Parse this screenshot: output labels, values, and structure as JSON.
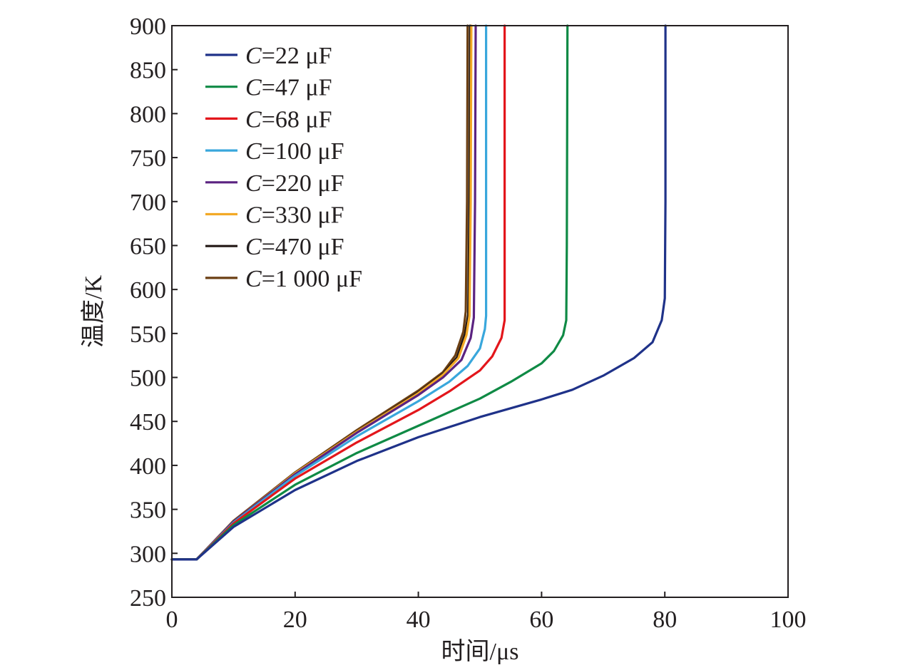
{
  "chart_data": {
    "type": "line",
    "title": "",
    "xlabel": "时间/μs",
    "ylabel": "温度/K",
    "xlim": [
      0,
      100
    ],
    "ylim": [
      250,
      900
    ],
    "xticks": [
      0,
      20,
      40,
      60,
      80,
      100
    ],
    "yticks": [
      250,
      300,
      350,
      400,
      450,
      500,
      550,
      600,
      650,
      700,
      750,
      800,
      850,
      900
    ],
    "grid": false,
    "legend_position": "top-left",
    "series": [
      {
        "name": "C=22 μF",
        "legend_var": "C",
        "legend_rest": "=22 μF",
        "color": "#1f3289",
        "x": [
          0,
          4,
          10,
          20,
          30,
          40,
          50,
          60,
          65,
          70,
          75,
          78,
          79.5,
          80,
          80.1,
          80.1
        ],
        "y": [
          293,
          293,
          330,
          372,
          405,
          432,
          455,
          475,
          486,
          502,
          522,
          540,
          565,
          590,
          700,
          900
        ]
      },
      {
        "name": "C=47 μF",
        "legend_var": "C",
        "legend_rest": "=47 μF",
        "color": "#0f8a45",
        "x": [
          0,
          4,
          10,
          20,
          30,
          40,
          50,
          55,
          60,
          62,
          63.5,
          64,
          64.1,
          64.2
        ],
        "y": [
          293,
          293,
          332,
          378,
          414,
          445,
          476,
          495,
          516,
          530,
          548,
          565,
          650,
          900
        ]
      },
      {
        "name": "C=68 μF",
        "legend_var": "C",
        "legend_rest": "=68 μF",
        "color": "#e3161b",
        "x": [
          0,
          4,
          10,
          20,
          30,
          40,
          45,
          50,
          52,
          53.5,
          54,
          54,
          54
        ],
        "y": [
          293,
          293,
          334,
          385,
          426,
          463,
          484,
          508,
          524,
          545,
          565,
          700,
          900
        ]
      },
      {
        "name": "C=100 μF",
        "legend_var": "C",
        "legend_rest": "=100 μF",
        "color": "#39a7dc",
        "x": [
          0,
          4,
          10,
          20,
          30,
          40,
          45,
          48,
          50,
          50.8,
          51,
          51,
          51
        ],
        "y": [
          293,
          293,
          335,
          388,
          433,
          473,
          495,
          513,
          533,
          555,
          570,
          700,
          900
        ]
      },
      {
        "name": "C=220 μF",
        "legend_var": "C",
        "legend_rest": "=220 μF",
        "color": "#5b2381",
        "x": [
          0,
          4,
          10,
          20,
          30,
          40,
          44,
          47,
          48.5,
          49,
          49.2,
          49.3
        ],
        "y": [
          293,
          293,
          336,
          390,
          437,
          480,
          500,
          520,
          545,
          568,
          700,
          900
        ]
      },
      {
        "name": "C=330 μF",
        "legend_var": "C",
        "legend_rest": "=330 μF",
        "color": "#f3a926",
        "x": [
          0,
          4,
          10,
          20,
          30,
          40,
          44,
          46.5,
          47.8,
          48.3,
          48.5,
          48.6
        ],
        "y": [
          293,
          293,
          336,
          391,
          438,
          482,
          503,
          522,
          548,
          570,
          700,
          900
        ]
      },
      {
        "name": "C=470 μF",
        "legend_var": "C",
        "legend_rest": "=470 μF",
        "color": "#231815",
        "x": [
          0,
          4,
          10,
          20,
          30,
          40,
          44,
          46.3,
          47.6,
          48.1,
          48.3,
          48.4
        ],
        "y": [
          293,
          293,
          336,
          391,
          438,
          483,
          504,
          523,
          550,
          572,
          700,
          900
        ]
      },
      {
        "name": "C=1 000 μF",
        "legend_var": "C",
        "legend_rest": "=1 000 μF",
        "color": "#6b3f13",
        "x": [
          0,
          4,
          10,
          20,
          30,
          40,
          44,
          46,
          47.3,
          47.7,
          47.9,
          48
        ],
        "y": [
          293,
          293,
          337,
          392,
          440,
          485,
          506,
          525,
          552,
          575,
          700,
          900
        ]
      }
    ]
  }
}
